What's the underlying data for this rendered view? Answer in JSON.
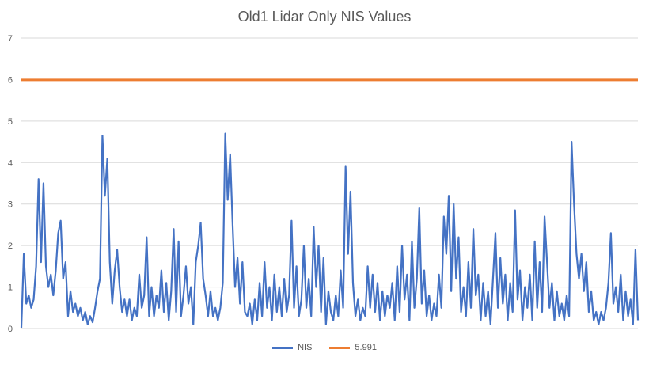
{
  "chart_data": {
    "type": "line",
    "title": "Old1 Lidar Only NIS Values",
    "xlabel": "",
    "ylabel": "",
    "ylim": [
      0,
      7
    ],
    "yticks": [
      "0",
      "1",
      "2",
      "3",
      "4",
      "5",
      "6",
      "7"
    ],
    "grid": true,
    "legend": "bottom",
    "colors": {
      "NIS": "#4472C4",
      "threshold": "#ED7D31",
      "grid": "#D9D9D9",
      "text": "#595959"
    },
    "series": [
      {
        "name": "NIS",
        "values": [
          0.02,
          1.8,
          0.6,
          0.8,
          0.5,
          0.7,
          1.5,
          3.6,
          1.6,
          3.5,
          1.5,
          1.0,
          1.3,
          0.8,
          1.4,
          2.3,
          2.6,
          1.2,
          1.6,
          0.3,
          0.9,
          0.4,
          0.6,
          0.3,
          0.5,
          0.2,
          0.4,
          0.1,
          0.3,
          0.15,
          0.5,
          0.9,
          1.2,
          4.65,
          3.2,
          4.1,
          1.6,
          0.6,
          1.4,
          1.9,
          1.0,
          0.4,
          0.7,
          0.3,
          0.7,
          0.2,
          0.5,
          0.3,
          1.3,
          0.5,
          0.8,
          2.2,
          0.3,
          1.0,
          0.3,
          0.8,
          0.5,
          1.4,
          0.4,
          1.1,
          0.2,
          0.9,
          2.4,
          0.4,
          2.1,
          0.3,
          0.8,
          1.5,
          0.6,
          1.0,
          0.1,
          1.6,
          2.0,
          2.55,
          1.2,
          0.8,
          0.3,
          0.9,
          0.3,
          0.5,
          0.2,
          0.5,
          1.1,
          4.7,
          3.1,
          4.2,
          2.5,
          1.0,
          1.7,
          0.6,
          1.6,
          0.4,
          0.3,
          0.6,
          0.1,
          0.7,
          0.2,
          1.1,
          0.3,
          1.6,
          0.5,
          1.0,
          0.2,
          1.3,
          0.4,
          1.0,
          0.3,
          1.2,
          0.4,
          0.8,
          2.6,
          0.5,
          1.5,
          0.3,
          0.7,
          2.0,
          0.5,
          1.2,
          0.3,
          2.45,
          1.0,
          2.0,
          0.4,
          1.7,
          0.1,
          0.9,
          0.4,
          0.2,
          0.8,
          0.3,
          1.4,
          0.5,
          3.9,
          1.8,
          3.3,
          1.1,
          0.3,
          0.7,
          0.2,
          0.5,
          0.3,
          1.5,
          0.5,
          1.3,
          0.4,
          1.1,
          0.2,
          0.9,
          0.3,
          0.8,
          0.5,
          1.1,
          0.2,
          1.5,
          0.4,
          2.0,
          0.7,
          1.3,
          0.2,
          2.1,
          0.5,
          1.2,
          2.9,
          0.6,
          1.4,
          0.3,
          0.8,
          0.2,
          0.6,
          0.3,
          1.3,
          0.5,
          2.7,
          1.8,
          3.2,
          0.9,
          3.0,
          1.2,
          2.2,
          0.4,
          1.0,
          0.3,
          1.6,
          0.5,
          2.4,
          0.8,
          1.3,
          0.2,
          1.1,
          0.3,
          0.9,
          0.1,
          1.2,
          2.3,
          0.5,
          1.7,
          0.6,
          1.3,
          0.2,
          1.1,
          0.4,
          2.85,
          0.7,
          1.4,
          0.2,
          1.0,
          0.5,
          1.3,
          0.2,
          2.1,
          0.5,
          1.6,
          0.4,
          2.7,
          1.6,
          0.5,
          1.1,
          0.2,
          0.9,
          0.3,
          0.6,
          0.2,
          0.8,
          0.3,
          4.5,
          3.0,
          1.8,
          1.2,
          1.8,
          0.9,
          1.6,
          0.4,
          0.9,
          0.2,
          0.4,
          0.1,
          0.4,
          0.2,
          0.5,
          1.1,
          2.3,
          0.6,
          1.0,
          0.4,
          1.3,
          0.2,
          0.9,
          0.3,
          0.7,
          0.1,
          1.9,
          0.2
        ]
      },
      {
        "name": "5.991",
        "constant": 5.991
      }
    ]
  }
}
